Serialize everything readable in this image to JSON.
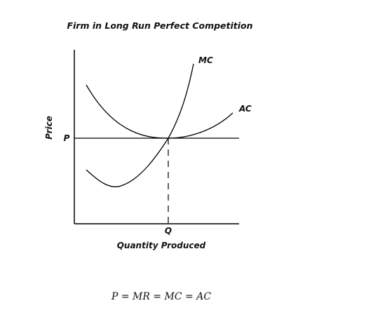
{
  "diagram": {
    "title": "Firm in Long Run Perfect Competition",
    "y_axis_label": "Price",
    "x_axis_label": "Quantity Produced",
    "price_label": "P",
    "quantity_label": "Q",
    "curves": {
      "mc_label": "MC",
      "ac_label": "AC"
    },
    "equation": "P = MR = MC = AC"
  }
}
